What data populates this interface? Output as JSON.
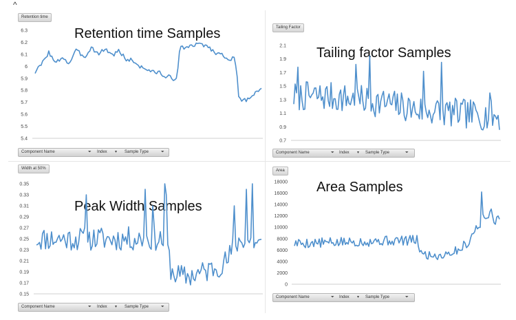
{
  "page": {
    "caret": "^"
  },
  "colors": {
    "line": "#4e8fcc",
    "axis": "#cfcfcf"
  },
  "filters": {
    "component": "Component Name",
    "index": "Index",
    "sample_type": "Sample Type",
    "icons": [
      "filter-icon",
      "dropdown-icon"
    ]
  },
  "chart_data": [
    {
      "type": "line",
      "field_label": "Retention time",
      "title": "Retention time Samples",
      "ylim": [
        5.4,
        6.3
      ],
      "yticks": [
        "6.3",
        "6.2",
        "6.1",
        "6",
        "5.9",
        "5.8",
        "5.7",
        "5.6",
        "5.5",
        "5.4"
      ],
      "grid": false,
      "keyframes": [
        [
          0,
          5.95
        ],
        [
          0.03,
          6.02
        ],
        [
          0.06,
          6.12
        ],
        [
          0.09,
          6.02
        ],
        [
          0.12,
          6.08
        ],
        [
          0.15,
          6.02
        ],
        [
          0.18,
          6.13
        ],
        [
          0.22,
          6.08
        ],
        [
          0.25,
          6.16
        ],
        [
          0.28,
          6.1
        ],
        [
          0.31,
          6.15
        ],
        [
          0.34,
          6.09
        ],
        [
          0.37,
          6.13
        ],
        [
          0.4,
          6.06
        ],
        [
          0.43,
          6.05
        ],
        [
          0.46,
          6.0
        ],
        [
          0.49,
          5.98
        ],
        [
          0.52,
          5.95
        ],
        [
          0.55,
          5.95
        ],
        [
          0.58,
          5.9
        ],
        [
          0.6,
          5.92
        ],
        [
          0.62,
          5.88
        ],
        [
          0.63,
          5.97
        ],
        [
          0.64,
          6.15
        ],
        [
          0.67,
          6.16
        ],
        [
          0.7,
          6.17
        ],
        [
          0.73,
          6.19
        ],
        [
          0.76,
          6.17
        ],
        [
          0.79,
          6.12
        ],
        [
          0.82,
          6.1
        ],
        [
          0.85,
          6.07
        ],
        [
          0.88,
          6.06
        ],
        [
          0.89,
          5.95
        ],
        [
          0.9,
          5.75
        ],
        [
          0.91,
          5.7
        ],
        [
          0.93,
          5.72
        ],
        [
          0.95,
          5.74
        ],
        [
          0.97,
          5.78
        ],
        [
          1.0,
          5.82
        ]
      ],
      "noise": 0.018,
      "seed": 3
    },
    {
      "type": "line",
      "field_label": "Tailing Factor",
      "title": "Tailing factor Samples",
      "ylim": [
        0.7,
        2.1
      ],
      "yticks": [
        "2.1",
        "1.9",
        "1.7",
        "1.5",
        "1.3",
        "1.1",
        "0.9",
        "0.7"
      ],
      "grid": false,
      "keyframes": [
        [
          0,
          1.35
        ],
        [
          0.15,
          1.35
        ],
        [
          0.3,
          1.3
        ],
        [
          0.45,
          1.25
        ],
        [
          0.6,
          1.15
        ],
        [
          0.8,
          1.1
        ],
        [
          1.0,
          1.05
        ]
      ],
      "noise": 0.22,
      "spikes": [
        [
          0.02,
          1.78
        ],
        [
          0.3,
          1.82
        ],
        [
          0.37,
          1.95
        ],
        [
          0.63,
          1.72
        ],
        [
          0.72,
          1.85
        ],
        [
          0.95,
          1.4
        ]
      ],
      "seed": 7
    },
    {
      "type": "line",
      "field_label": "Width at 50%",
      "title": "Peak Width Samples",
      "ylim": [
        0.15,
        0.35
      ],
      "yticks": [
        "0.35",
        "0.33",
        "0.31",
        "0.29",
        "0.27",
        "0.25",
        "0.23",
        "0.21",
        "0.19",
        "0.17",
        "0.15"
      ],
      "grid": false,
      "keyframes": [
        [
          0,
          0.25
        ],
        [
          0.2,
          0.25
        ],
        [
          0.4,
          0.25
        ],
        [
          0.55,
          0.25
        ],
        [
          0.58,
          0.24
        ],
        [
          0.6,
          0.19
        ],
        [
          0.65,
          0.18
        ],
        [
          0.75,
          0.19
        ],
        [
          0.85,
          0.21
        ],
        [
          0.88,
          0.24
        ],
        [
          0.92,
          0.25
        ],
        [
          1.0,
          0.24
        ]
      ],
      "noise": 0.022,
      "spikes": [
        [
          0.22,
          0.33
        ],
        [
          0.48,
          0.34
        ],
        [
          0.52,
          0.31
        ],
        [
          0.57,
          0.35
        ],
        [
          0.58,
          0.33
        ],
        [
          0.88,
          0.31
        ],
        [
          0.93,
          0.34
        ],
        [
          0.96,
          0.35
        ]
      ],
      "seed": 11
    },
    {
      "type": "line",
      "field_label": "Area",
      "title": "Area Samples",
      "ylim": [
        0,
        18000
      ],
      "yticks": [
        "18000",
        "16000",
        "14000",
        "12000",
        "10000",
        "8000",
        "6000",
        "4000",
        "2000",
        "0"
      ],
      "grid": false,
      "keyframes": [
        [
          0,
          7200
        ],
        [
          0.2,
          7300
        ],
        [
          0.4,
          7600
        ],
        [
          0.6,
          7700
        ],
        [
          0.62,
          5200
        ],
        [
          0.7,
          5000
        ],
        [
          0.8,
          6000
        ],
        [
          0.85,
          7500
        ],
        [
          0.88,
          9500
        ],
        [
          0.92,
          11500
        ],
        [
          0.95,
          12000
        ],
        [
          1.0,
          11000
        ]
      ],
      "noise": 900,
      "spikes": [
        [
          0.91,
          16200
        ],
        [
          0.96,
          13200
        ]
      ],
      "seed": 5
    }
  ]
}
